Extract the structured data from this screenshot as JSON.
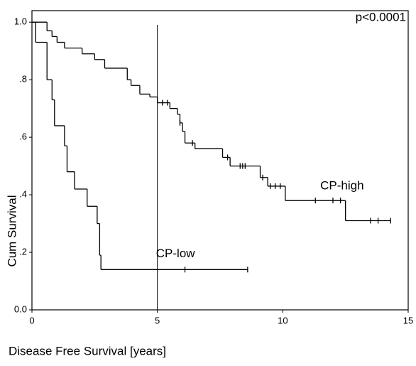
{
  "chart_data": {
    "type": "survival",
    "x_label": "Disease Free Survival [years]",
    "y_label": "Cum Survival",
    "annotation": "p<0.0001",
    "vline": 5,
    "xlim": [
      0,
      15
    ],
    "ylim": [
      0,
      1.04
    ],
    "xticks": [
      0,
      5,
      10,
      15
    ],
    "yticks": [
      {
        "value": 0,
        "label": "0.0"
      },
      {
        "value": 0.2,
        "label": ".2"
      },
      {
        "value": 0.4,
        "label": ".4"
      },
      {
        "value": 0.6,
        "label": ".6"
      },
      {
        "value": 0.8,
        "label": ".8"
      },
      {
        "value": 1,
        "label": "1.0"
      }
    ],
    "color": "#000000",
    "series": [
      {
        "name": "CP-high",
        "x": [
          0,
          0.6,
          0.8,
          1.0,
          1.3,
          2.0,
          2.5,
          2.9,
          3.8,
          3.95,
          4.3,
          4.7,
          5.0,
          5.5,
          5.8,
          5.9,
          6.0,
          6.1,
          6.5,
          7.6,
          7.9,
          9.1,
          9.4,
          10.1,
          12.5
        ],
        "values": [
          1.0,
          0.97,
          0.95,
          0.93,
          0.91,
          0.89,
          0.87,
          0.84,
          0.8,
          0.78,
          0.75,
          0.74,
          0.72,
          0.7,
          0.68,
          0.65,
          0.62,
          0.58,
          0.56,
          0.53,
          0.5,
          0.46,
          0.43,
          0.38,
          0.31
        ],
        "censor_x": [
          5.2,
          5.4,
          5.9,
          6.4,
          7.8,
          8.3,
          8.4,
          8.5,
          9.2,
          9.5,
          9.7,
          9.9,
          11.3,
          12.0,
          12.3,
          13.5,
          13.8,
          14.3
        ],
        "censor_values": [
          0.72,
          0.72,
          0.65,
          0.58,
          0.53,
          0.5,
          0.5,
          0.5,
          0.46,
          0.43,
          0.43,
          0.43,
          0.38,
          0.38,
          0.38,
          0.31,
          0.31,
          0.31
        ]
      },
      {
        "name": "CP-low",
        "x": [
          0,
          0.15,
          0.6,
          0.8,
          0.9,
          1.3,
          1.4,
          1.7,
          2.2,
          2.6,
          2.7,
          2.75
        ],
        "values": [
          1.0,
          0.93,
          0.8,
          0.73,
          0.64,
          0.57,
          0.48,
          0.42,
          0.36,
          0.3,
          0.19,
          0.14
        ],
        "censor_x": [
          6.1,
          8.6
        ],
        "censor_values": [
          0.14,
          0.14
        ]
      }
    ]
  }
}
